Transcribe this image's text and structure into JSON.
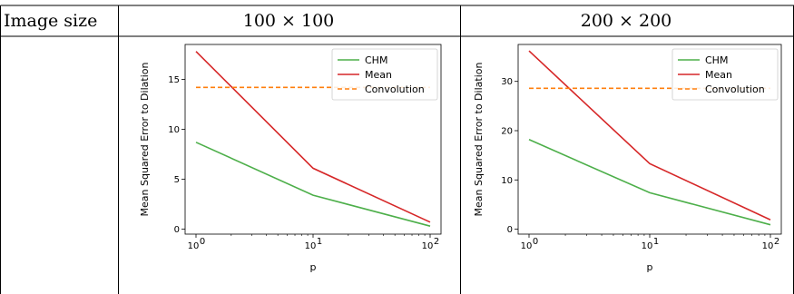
{
  "table": {
    "header_label": "Image size",
    "col1_header": "100 × 100",
    "col2_header": "200 × 200"
  },
  "colors": {
    "chm": "#4daf4a",
    "mean": "#d62728",
    "convolution": "#ff7f0e"
  },
  "chart_data": [
    {
      "type": "line",
      "xlabel": "p",
      "ylabel": "Mean Squared Error to Dilation",
      "xscale": "log",
      "x": [
        1,
        10,
        100
      ],
      "xticks": [
        "10",
        "10",
        "10"
      ],
      "xtick_exponents": [
        "0",
        "1",
        "2"
      ],
      "ylim": [
        -0.5,
        18.5
      ],
      "yticks": [
        0,
        5,
        10,
        15
      ],
      "legend_position": "top-right",
      "series": [
        {
          "name": "CHM",
          "values": [
            8.7,
            3.4,
            0.3
          ],
          "style": "solid"
        },
        {
          "name": "Mean",
          "values": [
            17.8,
            6.1,
            0.7
          ],
          "style": "solid"
        },
        {
          "name": "Convolution",
          "values": [
            14.2,
            14.2,
            14.2
          ],
          "style": "dashed"
        }
      ]
    },
    {
      "type": "line",
      "xlabel": "p",
      "ylabel": "Mean Squared Error to Dilation",
      "xscale": "log",
      "x": [
        1,
        10,
        100
      ],
      "xticks": [
        "10",
        "10",
        "10"
      ],
      "xtick_exponents": [
        "0",
        "1",
        "2"
      ],
      "ylim": [
        -1,
        37.5
      ],
      "yticks": [
        0,
        10,
        20,
        30
      ],
      "legend_position": "top-right",
      "series": [
        {
          "name": "CHM",
          "values": [
            18.2,
            7.4,
            0.9
          ],
          "style": "solid"
        },
        {
          "name": "Mean",
          "values": [
            36.2,
            13.3,
            1.9
          ],
          "style": "solid"
        },
        {
          "name": "Convolution",
          "values": [
            28.6,
            28.6,
            28.6
          ],
          "style": "dashed"
        }
      ]
    }
  ]
}
